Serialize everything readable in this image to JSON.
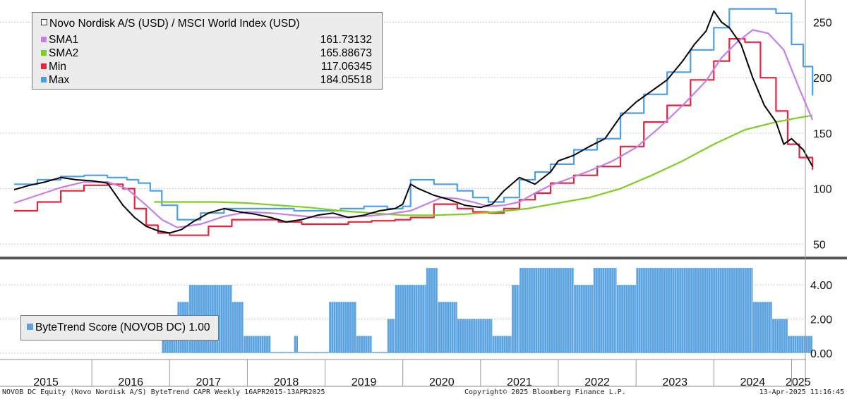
{
  "legend": {
    "title": "Novo Nordisk A/S (USD) / MSCI World Index (USD)",
    "rows": [
      {
        "name": "SMA1",
        "value": "161.73132",
        "color": "#c77fe6"
      },
      {
        "name": "SMA2",
        "value": "165.88673",
        "color": "#7ccf1f"
      },
      {
        "name": "Min",
        "value": "117.06345",
        "color": "#e8233c"
      },
      {
        "name": "Max",
        "value": "184.05518",
        "color": "#4a9fe8"
      }
    ]
  },
  "bytetrend_legend": "ByteTrend Score (NOVOB DC) 1.00",
  "footer": {
    "left": "NOVOB DC Equity (Novo Nordisk A/S) ByteTrend CAPR  Weekly 16APR2015-13APR2025",
    "center": "Copyright© 2025 Bloomberg Finance L.P.",
    "right": "13-Apr-2025 11:16:45"
  },
  "chart_data": [
    {
      "type": "line",
      "title": "Novo Nordisk A/S (USD) / MSCI World Index (USD)",
      "ylim": [
        40,
        270
      ],
      "y_ticks": [
        50,
        100,
        150,
        200,
        250
      ],
      "x_range": [
        2015.0,
        2025.35
      ],
      "x_tick_labels": [
        "2015",
        "2016",
        "2017",
        "2018",
        "2019",
        "2020",
        "2021",
        "2022",
        "2023",
        "2024",
        "2025"
      ],
      "series": [
        {
          "name": "Novo Nordisk A/S (USD) / MSCI World Index (USD)",
          "color": "#000000",
          "x": [
            2015.0,
            2015.2,
            2015.4,
            2015.6,
            2015.8,
            2016.0,
            2016.2,
            2016.4,
            2016.55,
            2016.7,
            2016.85,
            2017.0,
            2017.15,
            2017.3,
            2017.5,
            2017.7,
            2017.9,
            2018.1,
            2018.3,
            2018.5,
            2018.7,
            2018.9,
            2019.1,
            2019.3,
            2019.5,
            2019.7,
            2019.9,
            2020.0,
            2020.1,
            2020.2,
            2020.4,
            2020.6,
            2020.8,
            2021.0,
            2021.15,
            2021.3,
            2021.5,
            2021.7,
            2021.9,
            2022.0,
            2022.2,
            2022.4,
            2022.6,
            2022.8,
            2023.0,
            2023.2,
            2023.4,
            2023.6,
            2023.75,
            2023.9,
            2024.0,
            2024.1,
            2024.2,
            2024.35,
            2024.5,
            2024.65,
            2024.8,
            2024.9,
            2025.0,
            2025.15,
            2025.27
          ],
          "values": [
            99,
            103,
            106,
            110,
            108,
            107,
            105,
            85,
            74,
            66,
            62,
            60,
            63,
            70,
            78,
            82,
            79,
            77,
            74,
            70,
            72,
            76,
            78,
            74,
            76,
            80,
            82,
            86,
            104,
            100,
            94,
            90,
            85,
            83,
            86,
            98,
            110,
            104,
            115,
            125,
            130,
            138,
            145,
            165,
            178,
            188,
            198,
            215,
            230,
            242,
            260,
            250,
            245,
            230,
            200,
            175,
            160,
            140,
            145,
            135,
            120
          ]
        },
        {
          "name": "SMA1",
          "color": "#c77fe6",
          "x": [
            2015.0,
            2015.3,
            2015.6,
            2015.9,
            2016.2,
            2016.45,
            2016.7,
            2016.9,
            2017.1,
            2017.4,
            2017.7,
            2018.0,
            2018.3,
            2018.6,
            2018.9,
            2019.2,
            2019.5,
            2019.8,
            2020.1,
            2020.3,
            2020.5,
            2020.7,
            2020.9,
            2021.1,
            2021.3,
            2021.5,
            2021.7,
            2021.9,
            2022.1,
            2022.4,
            2022.7,
            2023.0,
            2023.3,
            2023.6,
            2023.9,
            2024.1,
            2024.3,
            2024.5,
            2024.7,
            2024.9,
            2025.1,
            2025.27
          ],
          "values": [
            87,
            94,
            101,
            106,
            106,
            100,
            85,
            72,
            65,
            68,
            75,
            79,
            78,
            76,
            74,
            74,
            75,
            77,
            80,
            86,
            92,
            91,
            88,
            84,
            85,
            88,
            96,
            103,
            108,
            116,
            125,
            137,
            155,
            175,
            197,
            218,
            232,
            243,
            240,
            225,
            190,
            162
          ]
        },
        {
          "name": "SMA2",
          "color": "#7ccf1f",
          "x": [
            2016.8,
            2017.2,
            2017.6,
            2018.0,
            2018.4,
            2018.8,
            2019.2,
            2019.6,
            2020.0,
            2020.4,
            2020.8,
            2021.2,
            2021.6,
            2022.0,
            2022.4,
            2022.8,
            2023.2,
            2023.6,
            2024.0,
            2024.4,
            2024.8,
            2025.1,
            2025.27
          ],
          "values": [
            88,
            88,
            88,
            87,
            85,
            83,
            80,
            78,
            76,
            76,
            77,
            79,
            82,
            87,
            92,
            100,
            112,
            125,
            140,
            153,
            160,
            164,
            166
          ]
        },
        {
          "name": "Min",
          "color": "#e8233c",
          "x": [
            2015.0,
            2015.3,
            2015.6,
            2015.9,
            2016.2,
            2016.4,
            2016.55,
            2016.7,
            2016.85,
            2017.0,
            2017.3,
            2017.5,
            2017.8,
            2018.1,
            2018.4,
            2018.7,
            2019.0,
            2019.3,
            2019.6,
            2019.9,
            2020.1,
            2020.4,
            2020.7,
            2020.9,
            2021.1,
            2021.3,
            2021.5,
            2021.7,
            2021.9,
            2022.2,
            2022.5,
            2022.8,
            2023.1,
            2023.4,
            2023.7,
            2024.0,
            2024.2,
            2024.4,
            2024.6,
            2024.8,
            2024.95,
            2025.1,
            2025.27
          ],
          "values": [
            80,
            88,
            98,
            103,
            104,
            100,
            82,
            67,
            60,
            58,
            58,
            66,
            72,
            72,
            70,
            68,
            68,
            70,
            71,
            72,
            74,
            86,
            82,
            79,
            78,
            82,
            90,
            96,
            105,
            112,
            120,
            138,
            160,
            175,
            198,
            215,
            235,
            232,
            200,
            170,
            140,
            128,
            117
          ]
        },
        {
          "name": "Max",
          "color": "#4a9fe8",
          "x": [
            2015.0,
            2015.3,
            2015.6,
            2015.9,
            2016.2,
            2016.45,
            2016.6,
            2016.75,
            2016.9,
            2017.1,
            2017.4,
            2017.7,
            2018.0,
            2018.3,
            2018.6,
            2018.9,
            2019.2,
            2019.5,
            2019.8,
            2020.0,
            2020.1,
            2020.4,
            2020.7,
            2020.9,
            2021.1,
            2021.3,
            2021.5,
            2021.7,
            2021.9,
            2022.2,
            2022.5,
            2022.8,
            2023.1,
            2023.4,
            2023.7,
            2024.0,
            2024.2,
            2024.4,
            2024.6,
            2024.8,
            2025.0,
            2025.15,
            2025.27
          ],
          "values": [
            104,
            108,
            111,
            112,
            110,
            108,
            105,
            98,
            85,
            72,
            78,
            82,
            82,
            82,
            80,
            80,
            82,
            84,
            82,
            84,
            108,
            104,
            98,
            92,
            88,
            92,
            108,
            115,
            122,
            135,
            145,
            168,
            185,
            205,
            225,
            245,
            262,
            262,
            262,
            258,
            230,
            210,
            184
          ]
        }
      ]
    },
    {
      "type": "bar",
      "title": "ByteTrend Score (NOVOB DC) 1.00",
      "ylim": [
        -0.3,
        5.5
      ],
      "y_ticks": [
        "0.00",
        "2.00",
        "4.00"
      ],
      "color": "#5aa3e0",
      "segments": [
        {
          "from": 2016.9,
          "to": 2017.1,
          "value": 1
        },
        {
          "from": 2017.1,
          "to": 2017.25,
          "value": 3
        },
        {
          "from": 2017.25,
          "to": 2017.8,
          "value": 4
        },
        {
          "from": 2017.8,
          "to": 2017.95,
          "value": 3
        },
        {
          "from": 2017.95,
          "to": 2018.3,
          "value": 1
        },
        {
          "from": 2018.3,
          "to": 2018.6,
          "value": 0
        },
        {
          "from": 2018.6,
          "to": 2018.65,
          "value": 1
        },
        {
          "from": 2018.65,
          "to": 2019.05,
          "value": 0
        },
        {
          "from": 2019.05,
          "to": 2019.4,
          "value": 3
        },
        {
          "from": 2019.4,
          "to": 2019.6,
          "value": 1
        },
        {
          "from": 2019.6,
          "to": 2019.8,
          "value": 0
        },
        {
          "from": 2019.8,
          "to": 2019.9,
          "value": 2
        },
        {
          "from": 2019.9,
          "to": 2020.3,
          "value": 4
        },
        {
          "from": 2020.3,
          "to": 2020.45,
          "value": 5
        },
        {
          "from": 2020.45,
          "to": 2020.7,
          "value": 3
        },
        {
          "from": 2020.7,
          "to": 2021.15,
          "value": 2
        },
        {
          "from": 2021.15,
          "to": 2021.4,
          "value": 1
        },
        {
          "from": 2021.4,
          "to": 2021.5,
          "value": 4
        },
        {
          "from": 2021.5,
          "to": 2022.2,
          "value": 5
        },
        {
          "from": 2022.2,
          "to": 2022.45,
          "value": 4
        },
        {
          "from": 2022.45,
          "to": 2022.75,
          "value": 5
        },
        {
          "from": 2022.75,
          "to": 2023.0,
          "value": 4
        },
        {
          "from": 2023.0,
          "to": 2024.5,
          "value": 5
        },
        {
          "from": 2024.5,
          "to": 2024.75,
          "value": 3
        },
        {
          "from": 2024.75,
          "to": 2024.95,
          "value": 2
        },
        {
          "from": 2024.95,
          "to": 2025.27,
          "value": 1
        }
      ]
    }
  ]
}
